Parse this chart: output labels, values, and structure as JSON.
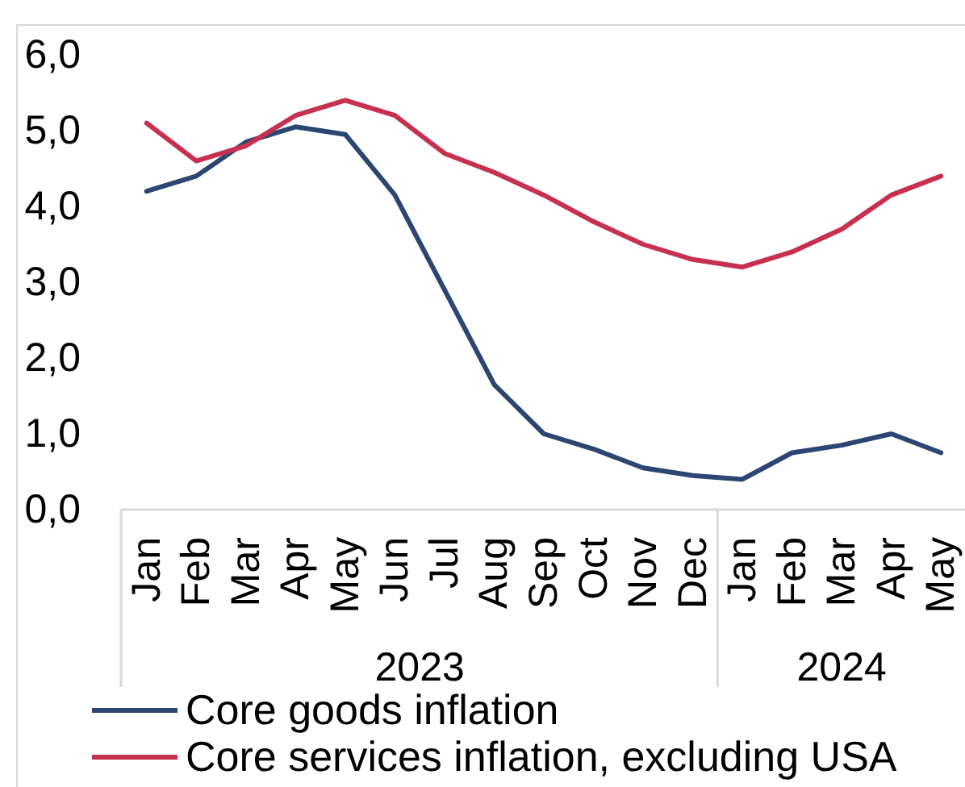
{
  "chart_data": {
    "type": "line",
    "x": [
      "2023-01",
      "2023-02",
      "2023-03",
      "2023-04",
      "2023-05",
      "2023-06",
      "2023-07",
      "2023-08",
      "2023-09",
      "2023-10",
      "2023-11",
      "2023-12",
      "2024-01",
      "2024-02",
      "2024-03",
      "2024-04",
      "2024-05"
    ],
    "xlim": [
      "2022-12-16",
      "2024-05-16"
    ],
    "xticks": [
      {
        "value": "2023-01",
        "label": "Jan"
      },
      {
        "value": "2023-02",
        "label": "Feb"
      },
      {
        "value": "2023-03",
        "label": "Mar"
      },
      {
        "value": "2023-04",
        "label": "Apr"
      },
      {
        "value": "2023-05",
        "label": "May"
      },
      {
        "value": "2023-06",
        "label": "Jun"
      },
      {
        "value": "2023-07",
        "label": "Jul"
      },
      {
        "value": "2023-08",
        "label": "Aug"
      },
      {
        "value": "2023-09",
        "label": "Sep"
      },
      {
        "value": "2023-10",
        "label": "Oct"
      },
      {
        "value": "2023-11",
        "label": "Nov"
      },
      {
        "value": "2023-12",
        "label": "Dec"
      },
      {
        "value": "2024-01",
        "label": "Jan"
      },
      {
        "value": "2024-02",
        "label": "Feb"
      },
      {
        "value": "2024-03",
        "label": "Mar"
      },
      {
        "value": "2024-04",
        "label": "Apr"
      },
      {
        "value": "2024-05",
        "label": "May"
      }
    ],
    "ylim": [
      0,
      6
    ],
    "yticks": [
      {
        "value": 0,
        "label": "0,0"
      },
      {
        "value": 1,
        "label": "1,0"
      },
      {
        "value": 2,
        "label": "2,0"
      },
      {
        "value": 3,
        "label": "3,0"
      },
      {
        "value": 4,
        "label": "4,0"
      },
      {
        "value": 5,
        "label": "5,0"
      },
      {
        "value": 6,
        "label": "6,0"
      }
    ],
    "annotations": [
      "2023",
      "2024"
    ],
    "legend": "bottom",
    "series": [
      {
        "name": "Core goods inflation",
        "color": "#2c4672",
        "values": [
          4.2,
          4.4,
          4.85,
          5.05,
          4.95,
          4.15,
          2.9,
          1.65,
          1.0,
          0.8,
          0.55,
          0.45,
          0.4,
          0.75,
          0.85,
          1.0,
          0.75
        ]
      },
      {
        "name": "Core services inflation, excluding USA",
        "color": "#c8304f",
        "values": [
          5.1,
          4.6,
          4.8,
          5.2,
          5.4,
          5.2,
          4.7,
          4.45,
          4.15,
          3.8,
          3.5,
          3.3,
          3.2,
          3.4,
          3.7,
          4.15,
          4.4
        ]
      }
    ]
  }
}
